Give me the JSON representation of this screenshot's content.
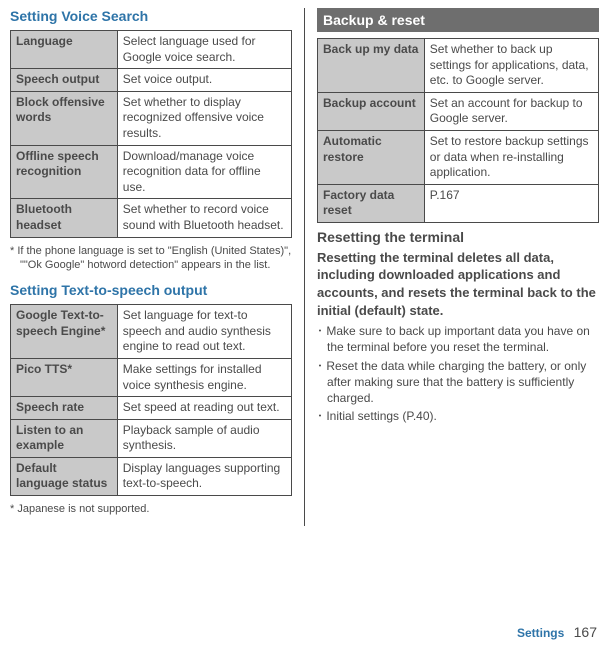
{
  "left": {
    "heading1": "Setting Voice Search",
    "table1": [
      {
        "key": "Language",
        "val": "Select language used for Google voice search."
      },
      {
        "key": "Speech output",
        "val": "Set voice output."
      },
      {
        "key": "Block offensive words",
        "val": "Set whether to display recognized offensive voice results."
      },
      {
        "key": "Offline speech recognition",
        "val": "Download/manage voice recognition data for offline use."
      },
      {
        "key": "Bluetooth headset",
        "val": "Set whether to record voice sound with Bluetooth headset."
      }
    ],
    "note1": "* If the phone language is set to \"English (United States)\", \"\"Ok Google\" hotword detection\" appears in the list.",
    "heading2": "Setting Text-to-speech output",
    "table2": [
      {
        "key": "Google Text-to-speech Engine*",
        "val": "Set language for text-to speech and audio synthesis engine to read out text."
      },
      {
        "key": "Pico TTS*",
        "val": "Make settings for installed voice synthesis engine."
      },
      {
        "key": "Speech rate",
        "val": "Set speed at reading out text."
      },
      {
        "key": "Listen to an example",
        "val": "Playback sample of audio synthesis."
      },
      {
        "key": "Default language status",
        "val": "Display languages supporting text-to-speech."
      }
    ],
    "note2": "* Japanese is not supported."
  },
  "right": {
    "bar": "Backup & reset",
    "table1": [
      {
        "key": "Back up my data",
        "val": "Set whether to back up settings for applications, data, etc. to Google server."
      },
      {
        "key": "Backup account",
        "val": "Set an account for backup to Google server."
      },
      {
        "key": "Automatic restore",
        "val": "Set to restore backup settings or data when re-installing application."
      },
      {
        "key": "Factory data reset",
        "val": "P.167"
      }
    ],
    "heading2": "Resetting the terminal",
    "lead": "Resetting the terminal deletes all data, including downloaded applications and accounts, and resets the terminal back to the initial (default) state.",
    "bullets": [
      "･ Make sure to back up important data you have on the terminal before you reset the terminal.",
      "･ Reset the data while charging the battery, or only after making sure that the battery is sufficiently charged.",
      "･ Initial settings (P.40)."
    ]
  },
  "footer": {
    "section": "Settings",
    "page": "167"
  }
}
